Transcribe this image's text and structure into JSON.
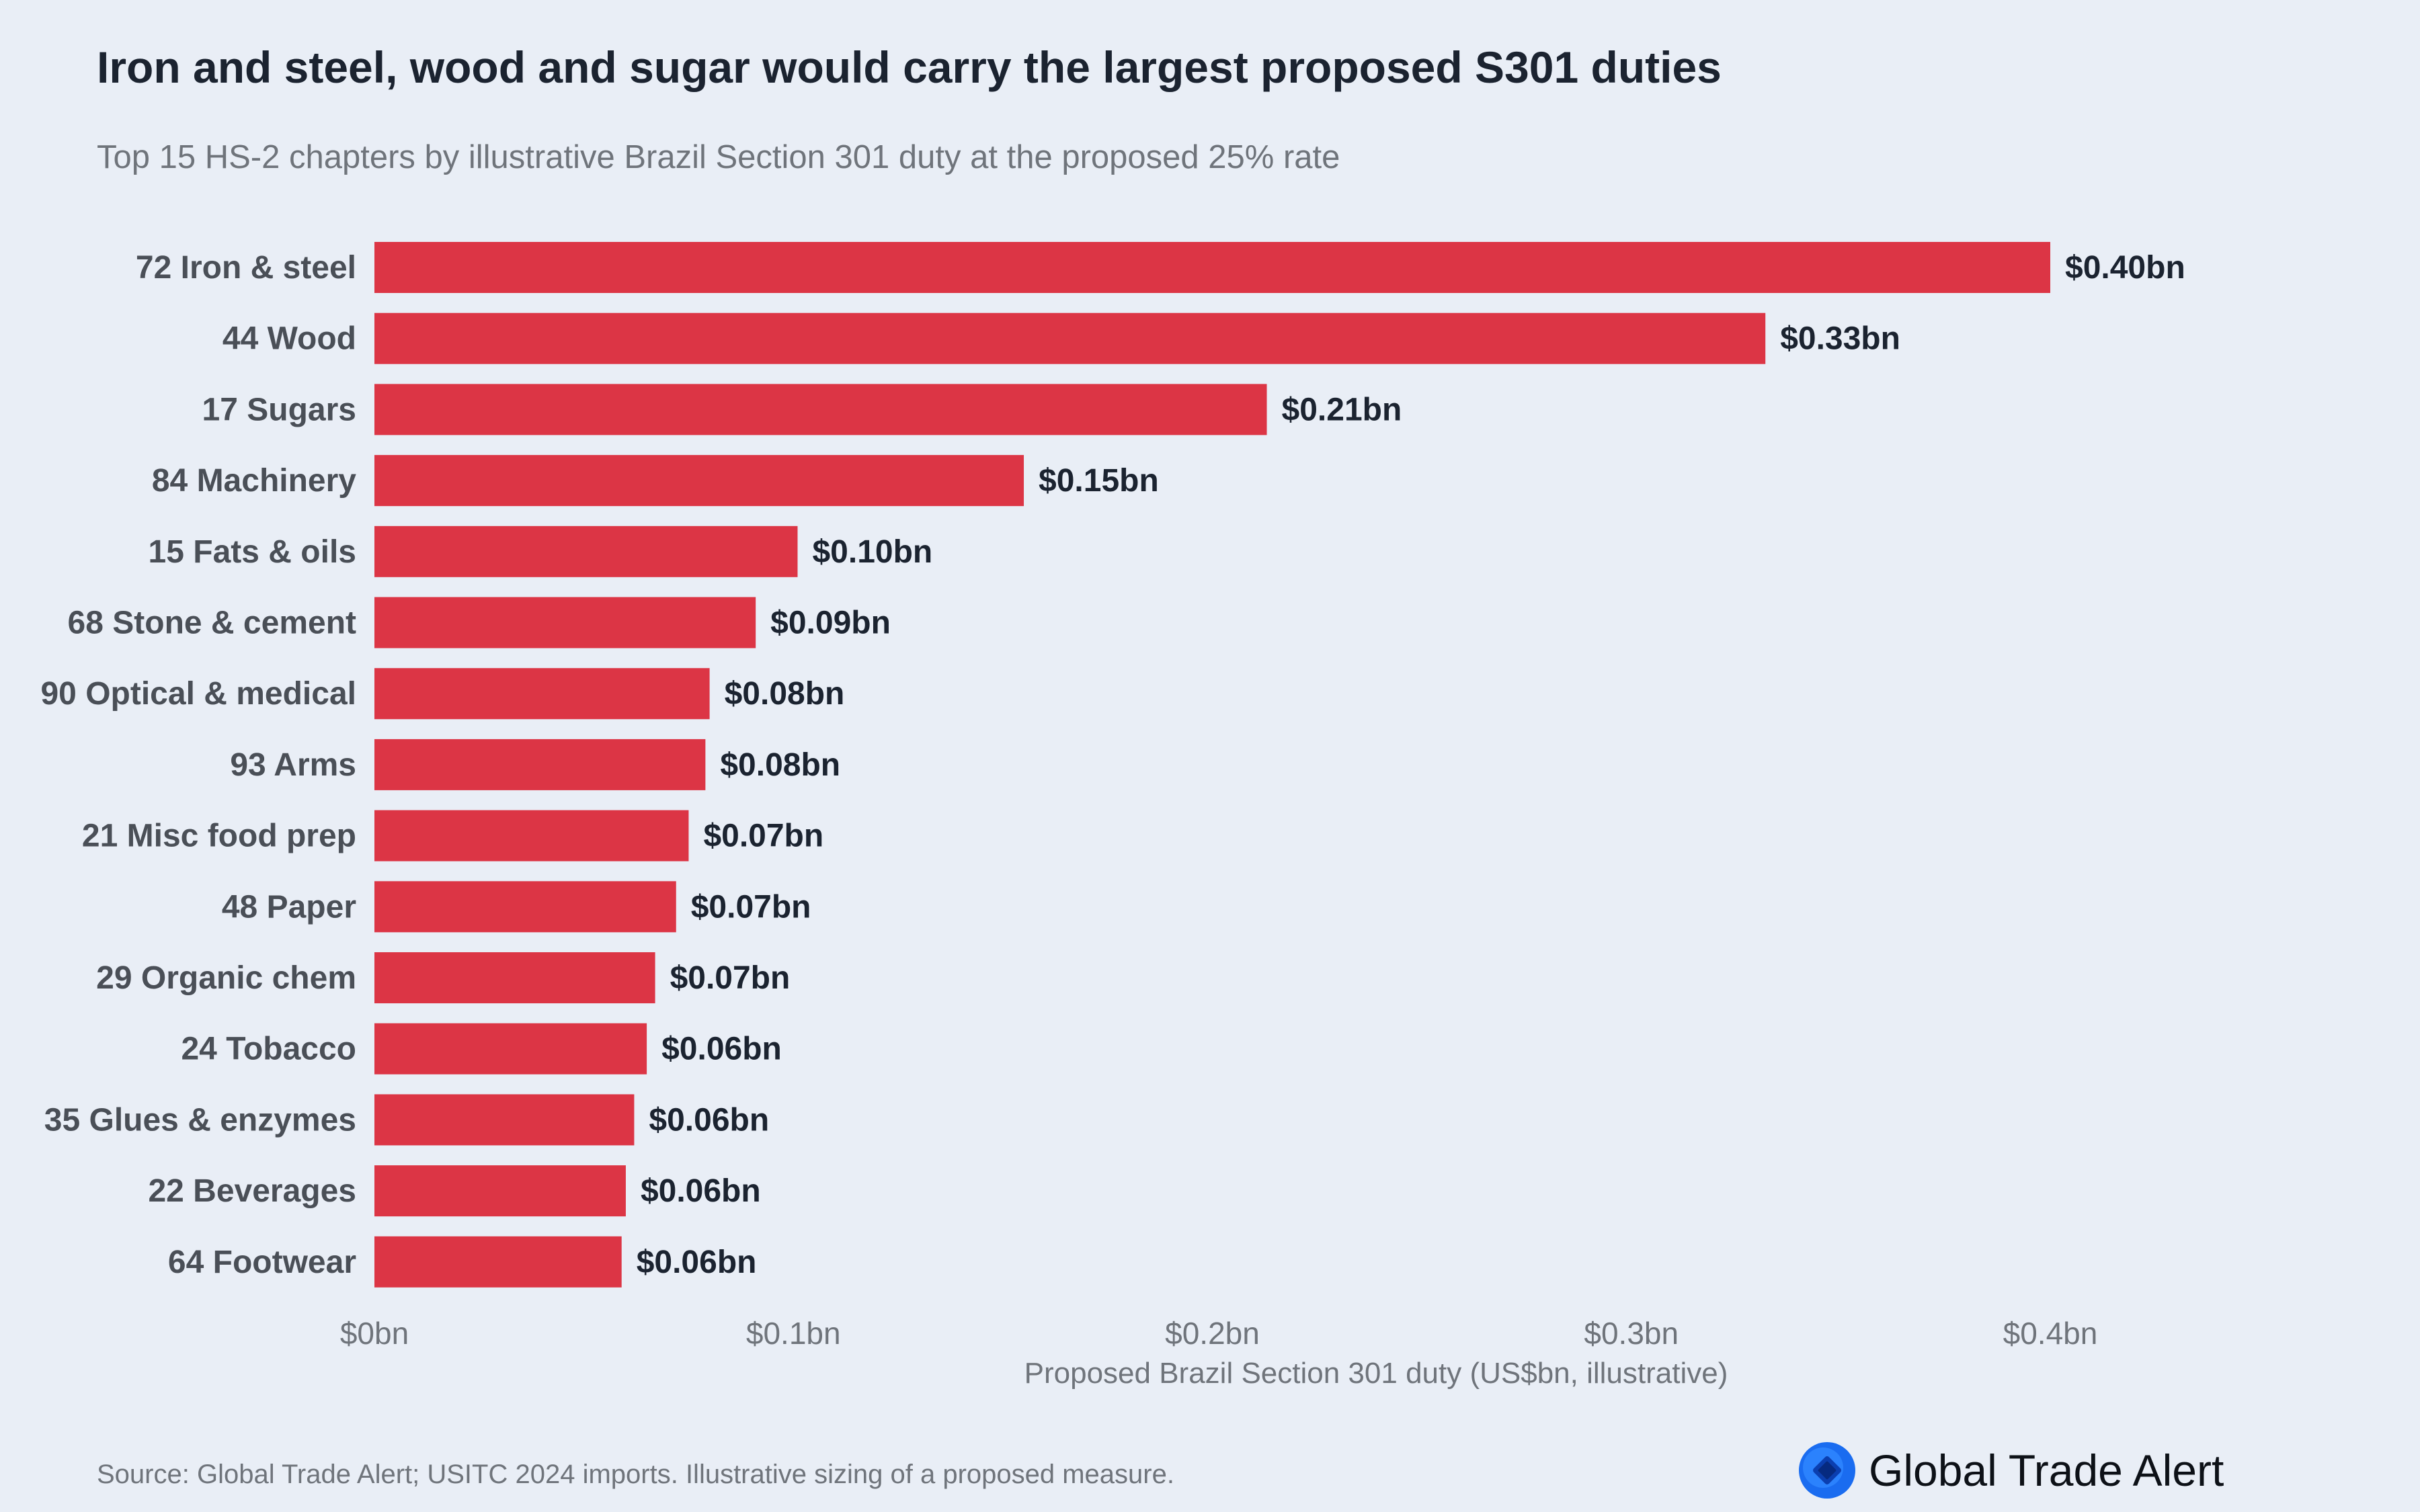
{
  "title": "Iron and steel, wood and sugar would carry the largest proposed S301 duties",
  "subtitle": "Top 15 HS-2 chapters by illustrative Brazil Section 301 duty at the proposed 25% rate",
  "source": "Source: Global Trade Alert; USITC 2024 imports. Illustrative sizing of a proposed measure.",
  "brand": {
    "name": "Global Trade Alert",
    "logo_icon": "globe-icon"
  },
  "colors": {
    "bar": "#dc3545",
    "background": "#e9eef6",
    "text_dark": "#1b2330",
    "text_muted": "#6f747b",
    "logo": "#1a6cf0"
  },
  "chart_data": {
    "type": "bar",
    "orientation": "horizontal",
    "categories": [
      "72 Iron & steel",
      "44 Wood",
      "17 Sugars",
      "84 Machinery",
      "15 Fats & oils",
      "68 Stone & cement",
      "90 Optical & medical",
      "93 Arms",
      "21 Misc food prep",
      "48 Paper",
      "29 Organic chem",
      "24 Tobacco",
      "35 Glues & enzymes",
      "22 Beverages",
      "64 Footwear"
    ],
    "values": [
      0.4,
      0.332,
      0.213,
      0.155,
      0.101,
      0.091,
      0.08,
      0.079,
      0.075,
      0.072,
      0.067,
      0.065,
      0.062,
      0.06,
      0.059
    ],
    "value_labels": [
      "$0.40bn",
      "$0.33bn",
      "$0.21bn",
      "$0.15bn",
      "$0.10bn",
      "$0.09bn",
      "$0.08bn",
      "$0.08bn",
      "$0.07bn",
      "$0.07bn",
      "$0.07bn",
      "$0.06bn",
      "$0.06bn",
      "$0.06bn",
      "$0.06bn"
    ],
    "xlabel": "Proposed Brazil Section 301 duty (US$bn, illustrative)",
    "xlim": [
      0,
      0.4
    ],
    "xticks": [
      0,
      0.1,
      0.2,
      0.3,
      0.4
    ],
    "xtick_labels": [
      "$0bn",
      "$0.1bn",
      "$0.2bn",
      "$0.3bn",
      "$0.4bn"
    ],
    "grid": false,
    "legend": "none"
  }
}
